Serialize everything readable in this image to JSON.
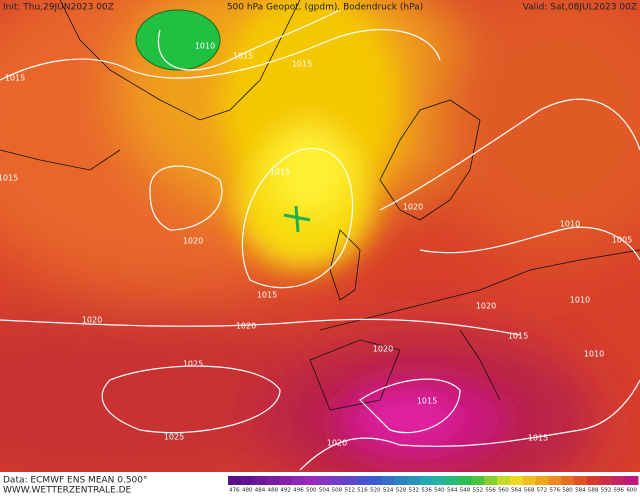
{
  "header": {
    "init": "Init: Thu,29JUN2023 00Z",
    "title": "500 hPa Geopot. (gpdm), Bodendruck (hPa)",
    "valid": "Valid: Sat,08JUL2023 00Z"
  },
  "isobar_labels": [
    "1010",
    "1015",
    "1015",
    "1015",
    "1015",
    "1015",
    "1020",
    "1020",
    "1015",
    "1020",
    "1020",
    "1025",
    "1025",
    "1010",
    "1005",
    "1010",
    "1020",
    "1015",
    "1020",
    "1010",
    "1015",
    "1020",
    "1015"
  ],
  "footer": {
    "data": "Data: ECMWF ENS MEAN 0.500°",
    "site": "WWW.WETTERZENTRALE.DE"
  },
  "color_scale": {
    "labels": [
      476,
      480,
      484,
      488,
      492,
      496,
      500,
      504,
      508,
      512,
      516,
      520,
      524,
      528,
      532,
      536,
      540,
      544,
      548,
      552,
      556,
      560,
      564,
      568,
      572,
      576,
      580,
      584,
      588,
      592,
      596,
      600
    ]
  }
}
